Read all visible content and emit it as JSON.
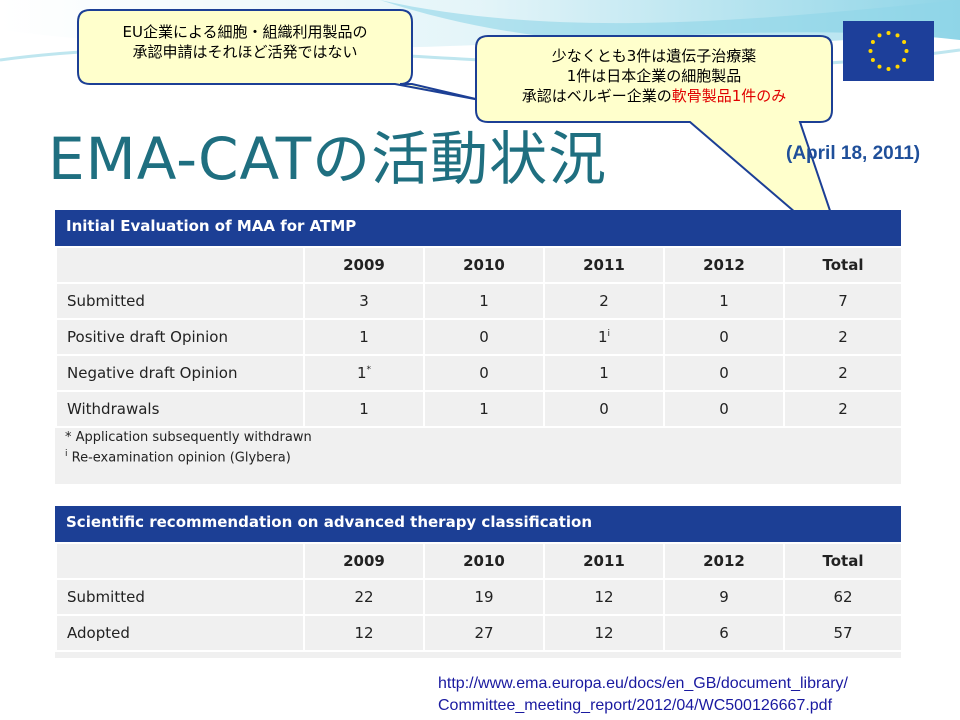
{
  "slide": {
    "title": "EMA-CATの活動状況",
    "date": "(April 18, 2011)",
    "callout_left": "EU企業による細胞・組織利用製品の承認申請はそれほど活発ではない",
    "callout_left_line1": "EU企業による細胞・組織利用製品の",
    "callout_left_line2": "承認申請はそれほど活発ではない",
    "callout_right_line1": "少なくとも3件は遺伝子治療薬",
    "callout_right_line2": "1件は日本企業の細胞製品",
    "callout_right_line3_a": "承認はベルギー企業の",
    "callout_right_line3_b": "軟骨製品1件のみ",
    "highlight_color": "#e00000",
    "title_color": "#1f6f80",
    "reference_line1": "http://www.ema.europa.eu/docs/en_GB/document_library/",
    "reference_line2": "Committee_meeting_report/2012/04/WC500126667.pdf"
  },
  "table1": {
    "header": "Initial Evaluation of MAA for ATMP",
    "columns": [
      "",
      "2009",
      "2010",
      "2011",
      "2012",
      "Total"
    ],
    "rows": [
      {
        "label": "Submitted",
        "values": [
          "3",
          "1",
          "2",
          "1",
          "7"
        ]
      },
      {
        "label": "Positive draft Opinion",
        "values": [
          "1",
          "0",
          "1",
          "0",
          "2"
        ]
      },
      {
        "label": "Negative draft Opinion",
        "values": [
          "1",
          "0",
          "1",
          "0",
          "2"
        ]
      },
      {
        "label": "Withdrawals",
        "values": [
          "1",
          "1",
          "0",
          "0",
          "2"
        ]
      }
    ],
    "sup_positive_2011": "i",
    "sup_negative_2009": "*",
    "note1": "* Application subsequently withdrawn",
    "note2_sup": "i",
    "note2": " Re-examination opinion (Glybera)"
  },
  "table2": {
    "header": "Scientific recommendation on advanced therapy classification",
    "columns": [
      "",
      "2009",
      "2010",
      "2011",
      "2012",
      "Total"
    ],
    "rows": [
      {
        "label": "Submitted",
        "values": [
          "22",
          "19",
          "12",
          "9",
          "62"
        ]
      },
      {
        "label": "Adopted",
        "values": [
          "12",
          "27",
          "12",
          "6",
          "57"
        ]
      }
    ]
  }
}
